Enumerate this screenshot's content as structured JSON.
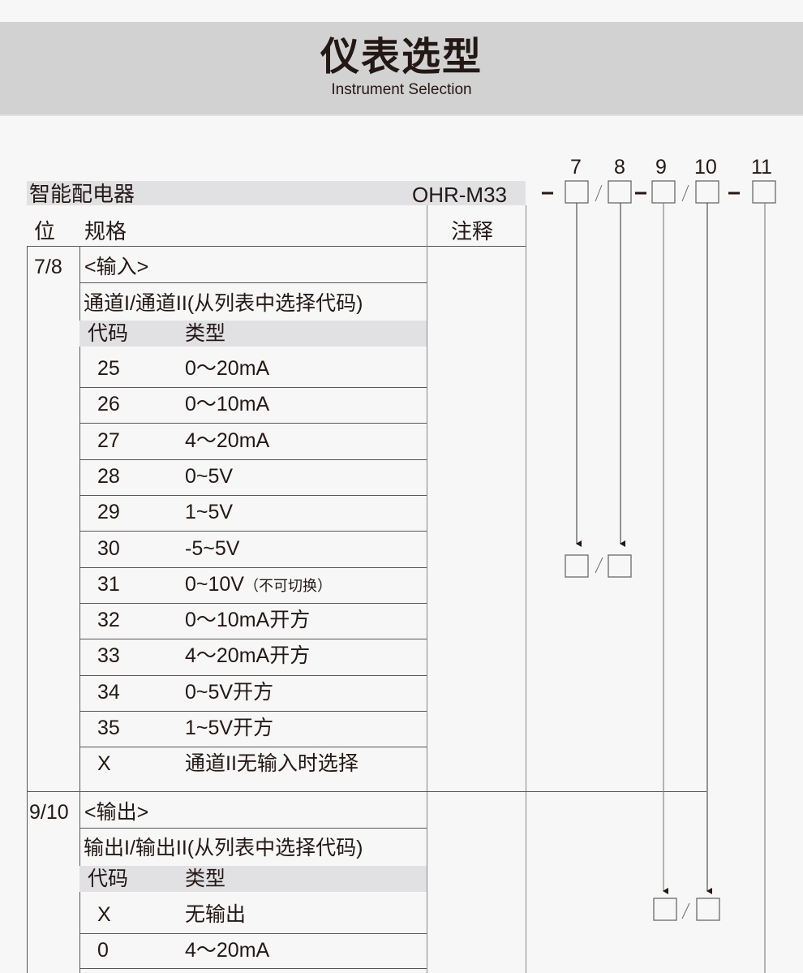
{
  "header": {
    "title": "仪表选型",
    "subtitle": "Instrument Selection"
  },
  "product": {
    "name": "智能配电器",
    "model": "OHR-M33"
  },
  "table_header": {
    "position": "位",
    "spec": "规格",
    "note": "注释"
  },
  "sections": [
    {
      "position": "7/8",
      "group": "<输入>",
      "desc": "通道I/通道II(从列表中选择代码)",
      "col_code": "代码",
      "col_type": "类型",
      "rows": [
        {
          "code": "25",
          "type": "0～20mA"
        },
        {
          "code": "26",
          "type": "0～10mA"
        },
        {
          "code": "27",
          "type": "4～20mA"
        },
        {
          "code": "28",
          "type": "0~5V"
        },
        {
          "code": "29",
          "type": "1~5V"
        },
        {
          "code": "30",
          "type": "-5~5V"
        },
        {
          "code": "31",
          "type": "0~10V",
          "note": "（不可切换）"
        },
        {
          "code": "32",
          "type": "0～10mA开方"
        },
        {
          "code": "33",
          "type": "4～20mA开方"
        },
        {
          "code": "34",
          "type": "0~5V开方"
        },
        {
          "code": "35",
          "type": "1~5V开方"
        },
        {
          "code": "X",
          "type": "通道II无输入时选择"
        }
      ]
    },
    {
      "position": "9/10",
      "group": "<输出>",
      "desc": "输出I/输出II(从列表中选择代码)",
      "col_code": "代码",
      "col_type": "类型",
      "rows": [
        {
          "code": "X",
          "type": "无输出"
        },
        {
          "code": "0",
          "type": "4～20mA"
        }
      ]
    }
  ],
  "diagram": {
    "positions": [
      "7",
      "8",
      "9",
      "10",
      "11"
    ],
    "dash": "-",
    "slash": "/"
  }
}
